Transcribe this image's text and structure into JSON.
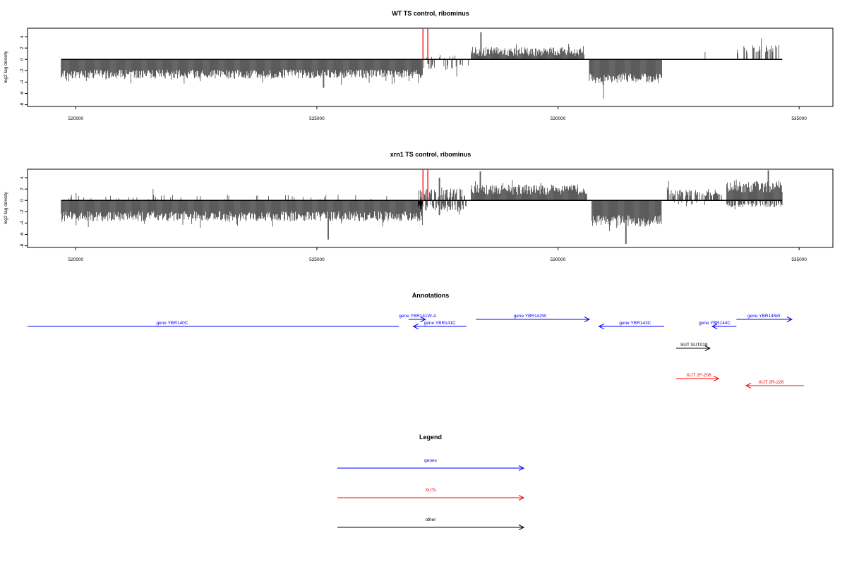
{
  "colors": {
    "genes": "#0000ff",
    "xuts": "#ff0000",
    "other": "#000000",
    "tss_marker": "#ff0000"
  },
  "chart_data": [
    {
      "type": "bar",
      "title": "WT TS control, ribominus",
      "ylabel": "log2 tag density",
      "xlim": [
        519000,
        535700
      ],
      "ylim": [
        -8.3,
        5.5
      ],
      "xticks": [
        520000,
        525000,
        530000,
        535000
      ],
      "yticks": [
        4,
        2,
        0,
        -2,
        -4,
        -6,
        -8
      ],
      "tss_markers": [
        {
          "x": 527200,
          "y": 5.4
        },
        {
          "x": 527300,
          "y": 5.4
        }
      ],
      "segments": [
        {
          "from": 519700,
          "to": 527200,
          "strand": "minus",
          "mean": 2.6,
          "spread": 0.8,
          "peak": -5.0,
          "density": 1.0
        },
        {
          "from": 527200,
          "to": 528150,
          "strand": "minus",
          "mean": 1.3,
          "spread": 0.6,
          "peak": -3.0,
          "density": 0.35
        },
        {
          "from": 527250,
          "to": 528100,
          "strand": "plus",
          "mean": 0.5,
          "spread": 0.3,
          "peak": 1.0,
          "density": 0.15
        },
        {
          "from": 528200,
          "to": 530550,
          "strand": "plus",
          "mean": 1.4,
          "spread": 0.8,
          "peak": 4.8,
          "density": 1.0
        },
        {
          "from": 530650,
          "to": 532150,
          "strand": "minus",
          "mean": 3.3,
          "spread": 0.9,
          "peak": -6.9,
          "density": 1.0
        },
        {
          "from": 532700,
          "to": 533400,
          "strand": "plus",
          "mean": 1.5,
          "spread": 0.5,
          "peak": 3.2,
          "density": 0.06
        },
        {
          "from": 533700,
          "to": 534600,
          "strand": "plus",
          "mean": 1.8,
          "spread": 0.7,
          "peak": 3.7,
          "density": 0.4
        }
      ]
    },
    {
      "type": "bar",
      "title": "xrn1 TS control, ribominus",
      "ylabel": "log2 tag density",
      "xlim": [
        519000,
        535700
      ],
      "ylim": [
        -8.3,
        5.5
      ],
      "xticks": [
        520000,
        525000,
        530000,
        535000
      ],
      "yticks": [
        4,
        2,
        0,
        -2,
        -4,
        -6,
        -8
      ],
      "tss_markers": [
        {
          "x": 527200,
          "y": 5.4
        },
        {
          "x": 527300,
          "y": 5.4
        }
      ],
      "segments": [
        {
          "from": 519700,
          "to": 527200,
          "strand": "minus",
          "mean": 2.8,
          "spread": 0.9,
          "peak": -6.9,
          "density": 1.0
        },
        {
          "from": 519700,
          "to": 526500,
          "strand": "plus",
          "mean": 0.6,
          "spread": 0.4,
          "peak": 2.0,
          "density": 0.08
        },
        {
          "from": 527100,
          "to": 528100,
          "strand": "minus",
          "mean": 1.2,
          "spread": 0.6,
          "peak": -2.6,
          "density": 0.7
        },
        {
          "from": 527100,
          "to": 528100,
          "strand": "plus",
          "mean": 1.4,
          "spread": 0.9,
          "peak": 4.0,
          "density": 0.6
        },
        {
          "from": 528200,
          "to": 530600,
          "strand": "plus",
          "mean": 1.9,
          "spread": 0.9,
          "peak": 5.1,
          "density": 1.0
        },
        {
          "from": 530700,
          "to": 532150,
          "strand": "minus",
          "mean": 3.6,
          "spread": 1.0,
          "peak": -7.7,
          "density": 1.0
        },
        {
          "from": 532250,
          "to": 533400,
          "strand": "plus",
          "mean": 1.3,
          "spread": 0.6,
          "peak": 3.4,
          "density": 0.7
        },
        {
          "from": 532300,
          "to": 533300,
          "strand": "minus",
          "mean": 0.6,
          "spread": 0.3,
          "peak": -1.2,
          "density": 0.15
        },
        {
          "from": 533500,
          "to": 534650,
          "strand": "plus",
          "mean": 2.4,
          "spread": 1.0,
          "peak": 5.3,
          "density": 1.0
        },
        {
          "from": 533500,
          "to": 534650,
          "strand": "minus",
          "mean": 0.8,
          "spread": 0.4,
          "peak": -1.6,
          "density": 0.6
        }
      ]
    }
  ],
  "annotations": {
    "title": "Annotations",
    "items": [
      {
        "label": "gene YBR140C",
        "category": "genes",
        "start": 519000,
        "end": 526700,
        "dir": "none",
        "row": 2,
        "label_x": 522000
      },
      {
        "label": "gene YBR141W-A",
        "category": "genes",
        "start": 526900,
        "end": 527250,
        "dir": "right",
        "row": 1,
        "label_x": 527090
      },
      {
        "label": "gene YBR141C",
        "category": "genes",
        "start": 527000,
        "end": 528100,
        "dir": "left",
        "row": 2,
        "label_x": 527550
      },
      {
        "label": "gene YBR142W",
        "category": "genes",
        "start": 528300,
        "end": 530650,
        "dir": "right",
        "row": 1,
        "label_x": 529420
      },
      {
        "label": "gene YBR143C",
        "category": "genes",
        "start": 530850,
        "end": 532200,
        "dir": "left",
        "row": 2,
        "label_x": 531600
      },
      {
        "label": "gene YBR144C",
        "category": "genes",
        "start": 533200,
        "end": 533700,
        "dir": "left",
        "row": 2,
        "label_x": 533250
      },
      {
        "label": "gene YBR145W",
        "category": "genes",
        "start": 533700,
        "end": 534850,
        "dir": "right",
        "row": 1,
        "label_x": 534270
      },
      {
        "label": "SUT SUT019",
        "category": "other",
        "start": 532450,
        "end": 533150,
        "dir": "right",
        "row": 3,
        "label_x": 532820
      },
      {
        "label": "XUT 2F-206",
        "category": "xuts",
        "start": 532450,
        "end": 533330,
        "dir": "right",
        "row": 4,
        "label_x": 532920
      },
      {
        "label": "XUT 2R-226",
        "category": "xuts",
        "start": 533900,
        "end": 535100,
        "dir": "left",
        "row": 5,
        "label_x": 534420
      }
    ]
  },
  "legend": {
    "title": "Legend",
    "entries": [
      {
        "label": "genes",
        "category": "genes"
      },
      {
        "label": "XUTs",
        "category": "xuts"
      },
      {
        "label": "other",
        "category": "other"
      }
    ]
  }
}
